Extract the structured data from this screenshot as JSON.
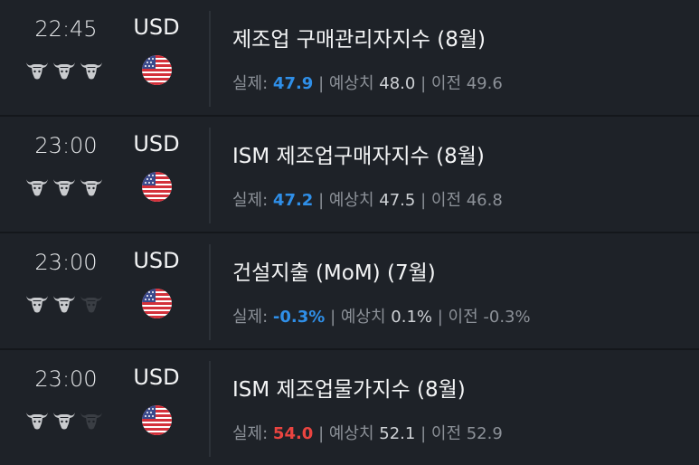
{
  "colors": {
    "background": "#1e2228",
    "positive": "#2f8fe8",
    "negative": "#ea4440",
    "bull_active": "#c9cbce",
    "bull_inactive": "#3a3e44"
  },
  "labels": {
    "actual": "실제:",
    "forecast": "| 예상치",
    "previous": "| 이전"
  },
  "events": [
    {
      "time": "22:45",
      "currency": "USD",
      "flag": "us-flag-icon",
      "importance": 3,
      "title": "제조업 구매관리자지수 (8월)",
      "actual": "47.9",
      "actual_tone": "blue",
      "forecast": "48.0",
      "previous": "49.6"
    },
    {
      "time": "23:00",
      "currency": "USD",
      "flag": "us-flag-icon",
      "importance": 3,
      "title": "ISM 제조업구매자지수 (8월)",
      "actual": "47.2",
      "actual_tone": "blue",
      "forecast": "47.5",
      "previous": "46.8"
    },
    {
      "time": "23:00",
      "currency": "USD",
      "flag": "us-flag-icon",
      "importance": 2,
      "title": "건설지출 (MoM) (7월)",
      "actual": "-0.3%",
      "actual_tone": "blue",
      "forecast": "0.1%",
      "previous": "-0.3%"
    },
    {
      "time": "23:00",
      "currency": "USD",
      "flag": "us-flag-icon",
      "importance": 2,
      "title": "ISM 제조업물가지수 (8월)",
      "actual": "54.0",
      "actual_tone": "red",
      "forecast": "52.1",
      "previous": "52.9"
    }
  ]
}
